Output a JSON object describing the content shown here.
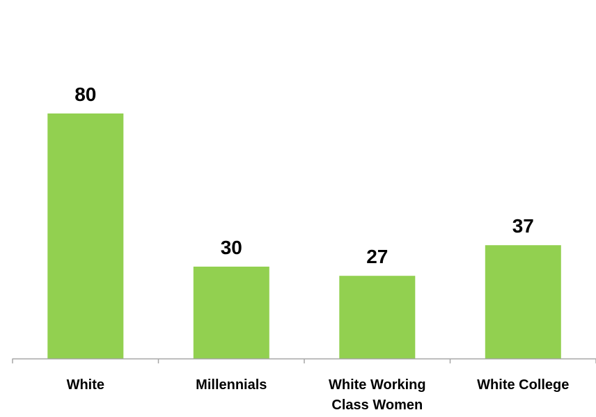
{
  "chart_data": {
    "type": "bar",
    "title": "",
    "xlabel": "",
    "ylabel": "",
    "categories": [
      [
        "White"
      ],
      [
        "Millennials"
      ],
      [
        "White Working",
        "Class Women"
      ],
      [
        "White College"
      ]
    ],
    "values": [
      80,
      30,
      27,
      37
    ],
    "data_labels": [
      "80",
      "30",
      "27",
      "37"
    ],
    "ylim": [
      0,
      100
    ],
    "grid": false,
    "legend": "none",
    "colors": {
      "bar": "#92d050",
      "axis": "#a6a6a6",
      "text": "#000000"
    }
  }
}
